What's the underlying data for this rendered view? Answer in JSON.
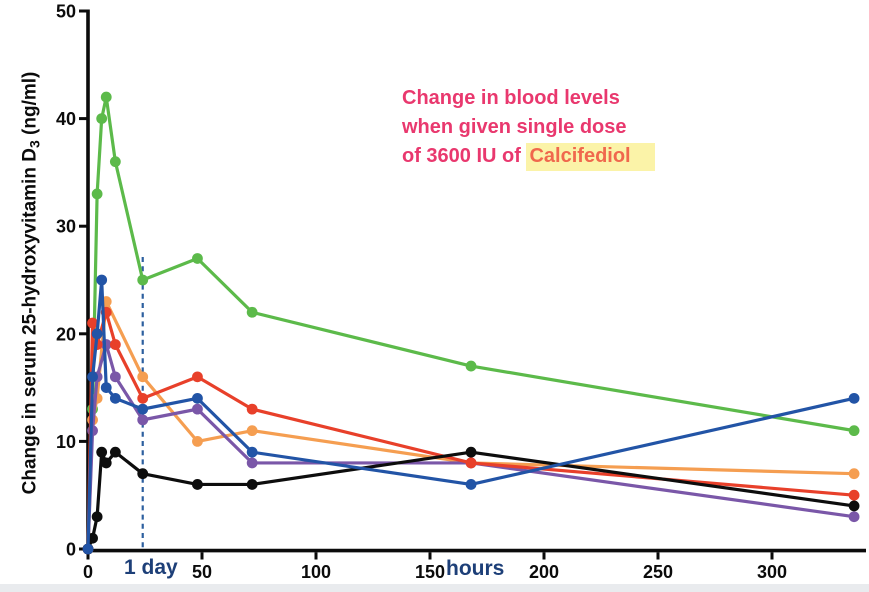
{
  "labels": {
    "title_line1": "Change in blood levels",
    "title_line2": "when given single dose",
    "title_line3_prefix": "of 3600 IU of ",
    "title_highlight": "Calcifediol",
    "y_label_pre": "Change in serum 25-hydroxyvitamin D",
    "y_label_sub": "3",
    "y_label_post": " (ng/ml)",
    "day_marker": "1 day",
    "x_unit": "hours"
  },
  "colors": {
    "title_pink": "#e9386e",
    "highlight_text": "#f0684d",
    "highlight_bg": "#fbf3a8",
    "navy_text": "#1d3f78",
    "axis_black": "#0b0b0b",
    "dashed_line": "#2d5f9f"
  },
  "chart_data": {
    "type": "line",
    "title": "Change in blood levels when given single dose of 3600 IU of Calcifediol",
    "xlabel": "hours",
    "ylabel": "Change in serum 25-hydroxyvitamin D3 (ng/ml)",
    "x_ticks": [
      0,
      50,
      100,
      150,
      200,
      250,
      300
    ],
    "y_ticks": [
      0,
      10,
      20,
      30,
      40,
      50
    ],
    "xlim": [
      0,
      341
    ],
    "ylim": [
      0,
      50
    ],
    "grid": false,
    "legend": "none",
    "day_marker": {
      "label": "1 day",
      "x_hours": 24
    },
    "series": [
      {
        "name": "subject-green",
        "color": "#5cba4a",
        "points": [
          [
            0,
            0
          ],
          [
            2,
            13
          ],
          [
            4,
            33
          ],
          [
            6,
            40
          ],
          [
            8,
            42
          ],
          [
            12,
            36
          ],
          [
            24,
            25
          ],
          [
            48,
            27
          ],
          [
            72,
            22
          ],
          [
            168,
            17
          ],
          [
            336,
            11
          ]
        ]
      },
      {
        "name": "subject-orange",
        "color": "#f59e51",
        "points": [
          [
            0,
            0
          ],
          [
            2,
            12
          ],
          [
            4,
            14
          ],
          [
            8,
            23
          ],
          [
            24,
            16
          ],
          [
            48,
            10
          ],
          [
            72,
            11
          ],
          [
            168,
            8
          ],
          [
            336,
            7
          ]
        ]
      },
      {
        "name": "subject-purple",
        "color": "#7a57a8",
        "points": [
          [
            0,
            0
          ],
          [
            2,
            11
          ],
          [
            4,
            16
          ],
          [
            8,
            19
          ],
          [
            12,
            16
          ],
          [
            24,
            12
          ],
          [
            48,
            13
          ],
          [
            72,
            8
          ],
          [
            168,
            8
          ],
          [
            336,
            3
          ]
        ]
      },
      {
        "name": "subject-red",
        "color": "#e8402a",
        "points": [
          [
            0,
            0
          ],
          [
            2,
            21
          ],
          [
            4,
            19
          ],
          [
            8,
            22
          ],
          [
            12,
            19
          ],
          [
            24,
            14
          ],
          [
            48,
            16
          ],
          [
            72,
            13
          ],
          [
            168,
            8
          ],
          [
            336,
            5
          ]
        ]
      },
      {
        "name": "subject-black",
        "color": "#0d0d0d",
        "points": [
          [
            0,
            0
          ],
          [
            2,
            1
          ],
          [
            4,
            3
          ],
          [
            6,
            9
          ],
          [
            8,
            8
          ],
          [
            12,
            9
          ],
          [
            24,
            7
          ],
          [
            48,
            6
          ],
          [
            72,
            6
          ],
          [
            168,
            9
          ],
          [
            336,
            4
          ]
        ]
      },
      {
        "name": "subject-blue",
        "color": "#2254a6",
        "points": [
          [
            0,
            0
          ],
          [
            2,
            16
          ],
          [
            4,
            20
          ],
          [
            6,
            25
          ],
          [
            8,
            15
          ],
          [
            12,
            14
          ],
          [
            24,
            13
          ],
          [
            48,
            14
          ],
          [
            72,
            9
          ],
          [
            168,
            6
          ],
          [
            336,
            14
          ]
        ]
      }
    ]
  }
}
